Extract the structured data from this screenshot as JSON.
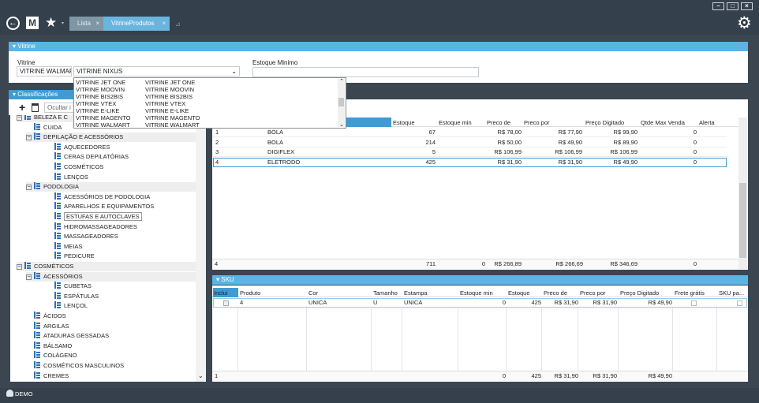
{
  "tabs": [
    "Lista",
    "VitrineProdutos"
  ],
  "vitrine": {
    "header": "Vitrine",
    "vitrine_label": "Vitrine",
    "vitrine_value": "VITRINE WALMAR",
    "combo_value": "VITRINE NIXUS",
    "estoque_label": "Estoque Minimo",
    "estoque_value": "",
    "dropdown": [
      [
        "VITRINE JET ONE",
        "VITRINE JET ONE"
      ],
      [
        "VITRINE MOOVIN",
        "VITRINE MOOVIN"
      ],
      [
        "VITRINE BIS2BIS",
        "VITRINE BIS2BIS"
      ],
      [
        "VITRINE VTEX",
        "VITRINE VTEX"
      ],
      [
        "VITRINE E-LIKE",
        "VITRINE E-LIKE"
      ],
      [
        "VITRINE MAGENTO",
        "VITRINE MAGENTO"
      ],
      [
        "VITRINE WALMART",
        "VITRINE WALMART"
      ]
    ]
  },
  "classificacoes": {
    "header": "Classificações",
    "ocultar": "Ocultar i",
    "tree": [
      {
        "t": "BELEZA E C",
        "lvl": 1,
        "exp": "−"
      },
      {
        "t": "CUIDA",
        "lvl": 2
      },
      {
        "t": "DEPILAÇÃO E ACESSÓRIOS",
        "lvl": 2,
        "exp": "−"
      },
      {
        "t": "AQUECEDORES",
        "lvl": 3
      },
      {
        "t": "CERAS DEPILATÓRIAS",
        "lvl": 3
      },
      {
        "t": "COSMÉTICOS",
        "lvl": 3
      },
      {
        "t": "LENÇOS",
        "lvl": 3
      },
      {
        "t": "PODOLOGIA",
        "lvl": 2,
        "exp": "−"
      },
      {
        "t": "ACESSÓRIOS DE PODOLOGIA",
        "lvl": 3
      },
      {
        "t": "APARELHOS E EQUIPAMENTOS",
        "lvl": 3
      },
      {
        "t": "ESTUFAS E AUTOCLAVES",
        "lvl": 3
      },
      {
        "t": "HIDROMASSAGEADORES",
        "lvl": 3
      },
      {
        "t": "MASSAGEADORES",
        "lvl": 3
      },
      {
        "t": "MEIAS",
        "lvl": 3
      },
      {
        "t": "PEDICURE",
        "lvl": 3
      },
      {
        "t": "COSMÉTICOS",
        "lvl": 1,
        "exp": "−"
      },
      {
        "t": "ACESSÓRIOS",
        "lvl": 2,
        "exp": "−"
      },
      {
        "t": "CUBETAS",
        "lvl": 3
      },
      {
        "t": "ESPÁTULAS",
        "lvl": 3
      },
      {
        "t": "LENÇOL",
        "lvl": 3
      },
      {
        "t": "ÁCIDOS",
        "lvl": 2
      },
      {
        "t": "ARGILAS",
        "lvl": 2
      },
      {
        "t": "ATADURAS GESSADAS",
        "lvl": 2
      },
      {
        "t": "BÁLSAMO",
        "lvl": 2
      },
      {
        "t": "COLÁGENO",
        "lvl": 2
      },
      {
        "t": "COSMÉTICOS MASCULINOS",
        "lvl": 2
      },
      {
        "t": "CREMES",
        "lvl": 2
      }
    ]
  },
  "produtos": {
    "columns": [
      "Estoque",
      "Estoque min",
      "Preco de",
      "Preco por",
      "Preço Digitado",
      "Qtde Max Venda",
      "Alerta"
    ],
    "rows": [
      [
        "1",
        "BOLA",
        "67",
        "",
        "R$ 78,00",
        "R$ 77,90",
        "R$ 99,90",
        "0"
      ],
      [
        "2",
        "BOLA",
        "214",
        "",
        "R$ 50,00",
        "R$ 49,90",
        "R$ 89,90",
        "0"
      ],
      [
        "3",
        "DIGIFLEX",
        "5",
        "",
        "R$ 106,99",
        "R$ 106,99",
        "R$ 106,99",
        "0"
      ],
      [
        "4",
        "ELETRODO",
        "425",
        "",
        "R$ 31,90",
        "R$ 31,90",
        "R$ 49,90",
        "0"
      ]
    ],
    "footer": [
      "4",
      "",
      "711",
      "0",
      "R$ 266,89",
      "R$ 266,69",
      "R$ 346,69",
      "0"
    ]
  },
  "sku": {
    "header": "SKU",
    "columns": [
      "Inclui",
      "Produto",
      "Cor",
      "Tamanho",
      "Estampa",
      "Estoque min",
      "Estoque",
      "Preco de",
      "Preco por",
      "Preço Digitado",
      "Frete grátis",
      "SKU pa..."
    ],
    "rows": [
      [
        "",
        "4",
        "UNICA",
        "U",
        "UNICA",
        "0",
        "425",
        "R$ 31,90",
        "R$ 31,90",
        "R$ 49,90",
        "",
        ""
      ]
    ],
    "footer": [
      "1",
      "",
      "",
      "",
      "",
      "0",
      "425",
      "R$ 31,90",
      "R$ 31,90",
      "R$ 49,90",
      "",
      ""
    ]
  },
  "status": {
    "user": "DEMO"
  }
}
